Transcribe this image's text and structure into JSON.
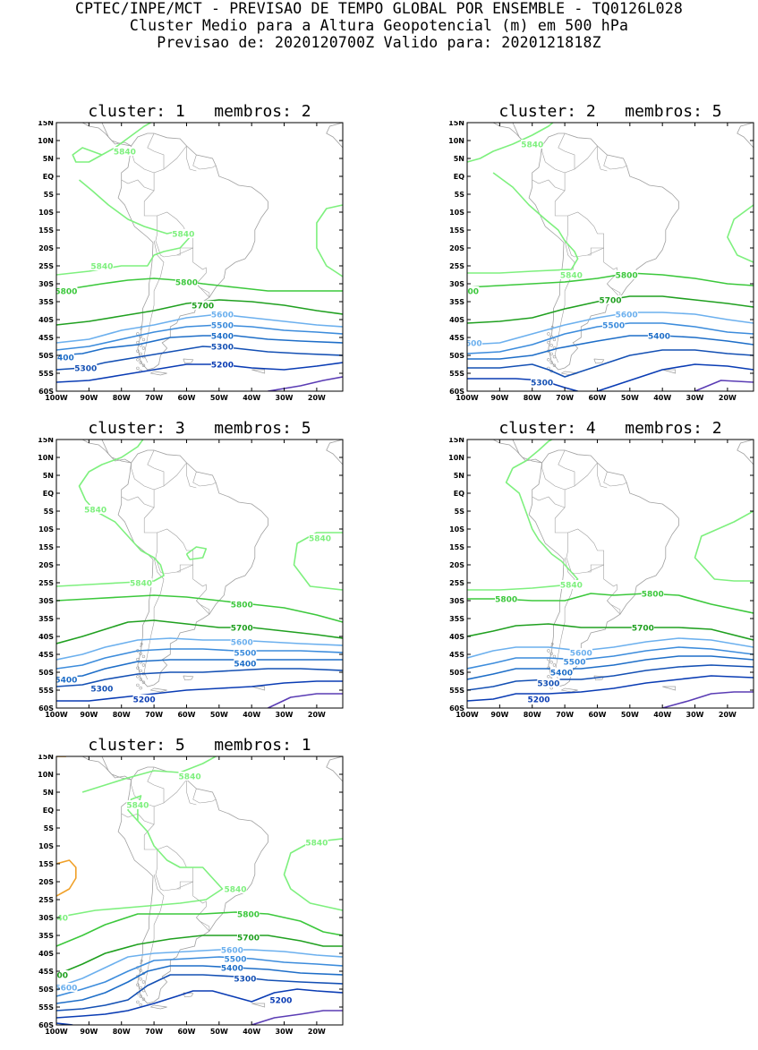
{
  "header": {
    "line1": "CPTEC/INPE/MCT - PREVISAO DE TEMPO GLOBAL POR ENSEMBLE - TQ0126L028",
    "line2": "Cluster Medio para a Altura Geopotencial (m) em 500 hPa",
    "line3": "Previsao de: 2020120700Z    Valido para: 2020121818Z"
  },
  "axes": {
    "lat_labels": [
      "15N",
      "10N",
      "5N",
      "EQ",
      "5S",
      "10S",
      "15S",
      "20S",
      "25S",
      "30S",
      "35S",
      "40S",
      "45S",
      "50S",
      "55S",
      "60S"
    ],
    "lon_labels": [
      "100W",
      "90W",
      "80W",
      "70W",
      "60W",
      "50W",
      "40W",
      "30W",
      "20W"
    ]
  },
  "colors": {
    "c5840": "#7ef07e",
    "c5800": "#3cc83c",
    "c5700": "#20a020",
    "c5600": "#6cb0ee",
    "c5500": "#3c8cdc",
    "c5400": "#1e6ec8",
    "c5300": "#1450b4",
    "c5200": "#0a3cb4",
    "c5100": "#5a3cb4",
    "c5900": "#f0a028",
    "coast": "#a0a0a0"
  },
  "panels": [
    {
      "title": "cluster: 1   membros: 2",
      "labels": [
        {
          "text": "5840",
          "lon": -79,
          "lat": 7,
          "c": "c5840"
        },
        {
          "text": "5840",
          "lon": -61,
          "lat": -16,
          "c": "c5840"
        },
        {
          "text": "5840",
          "lon": -86,
          "lat": -25,
          "c": "c5840"
        },
        {
          "text": "5800",
          "lon": -60,
          "lat": -29.5,
          "c": "c5800"
        },
        {
          "text": "5800",
          "lon": -97,
          "lat": -32,
          "c": "c5800"
        },
        {
          "text": "5700",
          "lon": -55,
          "lat": -36,
          "c": "c5700"
        },
        {
          "text": "5600",
          "lon": -49,
          "lat": -38.5,
          "c": "c5600"
        },
        {
          "text": "5500",
          "lon": -49,
          "lat": -41.5,
          "c": "c5500"
        },
        {
          "text": "5400",
          "lon": -49,
          "lat": -44.5,
          "c": "c5400"
        },
        {
          "text": "5300",
          "lon": -49,
          "lat": -47.5,
          "c": "c5300"
        },
        {
          "text": "5400",
          "lon": -98,
          "lat": -50.5,
          "c": "c5400"
        },
        {
          "text": "5300",
          "lon": -91,
          "lat": -53.5,
          "c": "c5300"
        },
        {
          "text": "5200",
          "lon": -49,
          "lat": -52.5,
          "c": "c5200"
        }
      ]
    },
    {
      "title": "cluster: 2   membros: 5",
      "labels": [
        {
          "text": "5840",
          "lon": -80,
          "lat": 9,
          "c": "c5840"
        },
        {
          "text": "5840",
          "lon": -68,
          "lat": -27.5,
          "c": "c5840"
        },
        {
          "text": "5800",
          "lon": -51,
          "lat": -27.5,
          "c": "c5800"
        },
        {
          "text": "800",
          "lon": -99,
          "lat": -32,
          "c": "c5800"
        },
        {
          "text": "5700",
          "lon": -56,
          "lat": -34.5,
          "c": "c5700"
        },
        {
          "text": "5600",
          "lon": -51,
          "lat": -38.5,
          "c": "c5600"
        },
        {
          "text": "5500",
          "lon": -55,
          "lat": -41.5,
          "c": "c5500"
        },
        {
          "text": "5400",
          "lon": -41,
          "lat": -44.5,
          "c": "c5400"
        },
        {
          "text": "600",
          "lon": -98,
          "lat": -46.5,
          "c": "c5600"
        },
        {
          "text": "5300",
          "lon": -77,
          "lat": -57.5,
          "c": "c5300"
        }
      ]
    },
    {
      "title": "cluster: 3   membros: 5",
      "labels": [
        {
          "text": "5840",
          "lon": -88,
          "lat": -4.5,
          "c": "c5840"
        },
        {
          "text": "5840",
          "lon": -19,
          "lat": -12.5,
          "c": "c5840"
        },
        {
          "text": "5840",
          "lon": -74,
          "lat": -25,
          "c": "c5840"
        },
        {
          "text": "5800",
          "lon": -43,
          "lat": -31,
          "c": "c5800"
        },
        {
          "text": "5700",
          "lon": -43,
          "lat": -37.5,
          "c": "c5700"
        },
        {
          "text": "5600",
          "lon": -43,
          "lat": -41.5,
          "c": "c5600"
        },
        {
          "text": "5500",
          "lon": -42,
          "lat": -44.5,
          "c": "c5500"
        },
        {
          "text": "5400",
          "lon": -42,
          "lat": -47.5,
          "c": "c5400"
        },
        {
          "text": "5400",
          "lon": -97,
          "lat": -52,
          "c": "c5400"
        },
        {
          "text": "5300",
          "lon": -86,
          "lat": -54.5,
          "c": "c5300"
        },
        {
          "text": "5200",
          "lon": -73,
          "lat": -57.5,
          "c": "c5200"
        }
      ]
    },
    {
      "title": "cluster: 4   membros: 2",
      "labels": [
        {
          "text": "5840",
          "lon": -68,
          "lat": -25.5,
          "c": "c5840"
        },
        {
          "text": "5800",
          "lon": -88,
          "lat": -29.5,
          "c": "c5800"
        },
        {
          "text": "5800",
          "lon": -43,
          "lat": -28,
          "c": "c5800"
        },
        {
          "text": "5700",
          "lon": -46,
          "lat": -37.5,
          "c": "c5700"
        },
        {
          "text": "5600",
          "lon": -65,
          "lat": -44.5,
          "c": "c5600"
        },
        {
          "text": "5500",
          "lon": -67,
          "lat": -47,
          "c": "c5500"
        },
        {
          "text": "5400",
          "lon": -71,
          "lat": -50,
          "c": "c5400"
        },
        {
          "text": "5300",
          "lon": -75,
          "lat": -53,
          "c": "c5300"
        },
        {
          "text": "5200",
          "lon": -78,
          "lat": -57.5,
          "c": "c5200"
        }
      ]
    },
    {
      "title": "cluster: 5   membros: 1",
      "labels": [
        {
          "text": "5840",
          "lon": -59,
          "lat": 9.5,
          "c": "c5840"
        },
        {
          "text": "5840",
          "lon": -75,
          "lat": 1.5,
          "c": "c5840"
        },
        {
          "text": "5840",
          "lon": -20,
          "lat": -9,
          "c": "c5840"
        },
        {
          "text": "5840",
          "lon": -45,
          "lat": -22,
          "c": "c5840"
        },
        {
          "text": "840",
          "lon": -99,
          "lat": -30,
          "c": "c5840"
        },
        {
          "text": "5800",
          "lon": -41,
          "lat": -29,
          "c": "c5800"
        },
        {
          "text": "5700",
          "lon": -41,
          "lat": -35.5,
          "c": "c5700"
        },
        {
          "text": "5600",
          "lon": -46,
          "lat": -39,
          "c": "c5600"
        },
        {
          "text": "5500",
          "lon": -45,
          "lat": -41.5,
          "c": "c5500"
        },
        {
          "text": "5400",
          "lon": -46,
          "lat": -44,
          "c": "c5400"
        },
        {
          "text": "5300",
          "lon": -42,
          "lat": -47,
          "c": "c5300"
        },
        {
          "text": "5200",
          "lon": -31,
          "lat": -53,
          "c": "c5200"
        },
        {
          "text": "700",
          "lon": -99,
          "lat": -46,
          "c": "c5700"
        },
        {
          "text": "5600",
          "lon": -97,
          "lat": -49.5,
          "c": "c5600"
        }
      ]
    }
  ]
}
